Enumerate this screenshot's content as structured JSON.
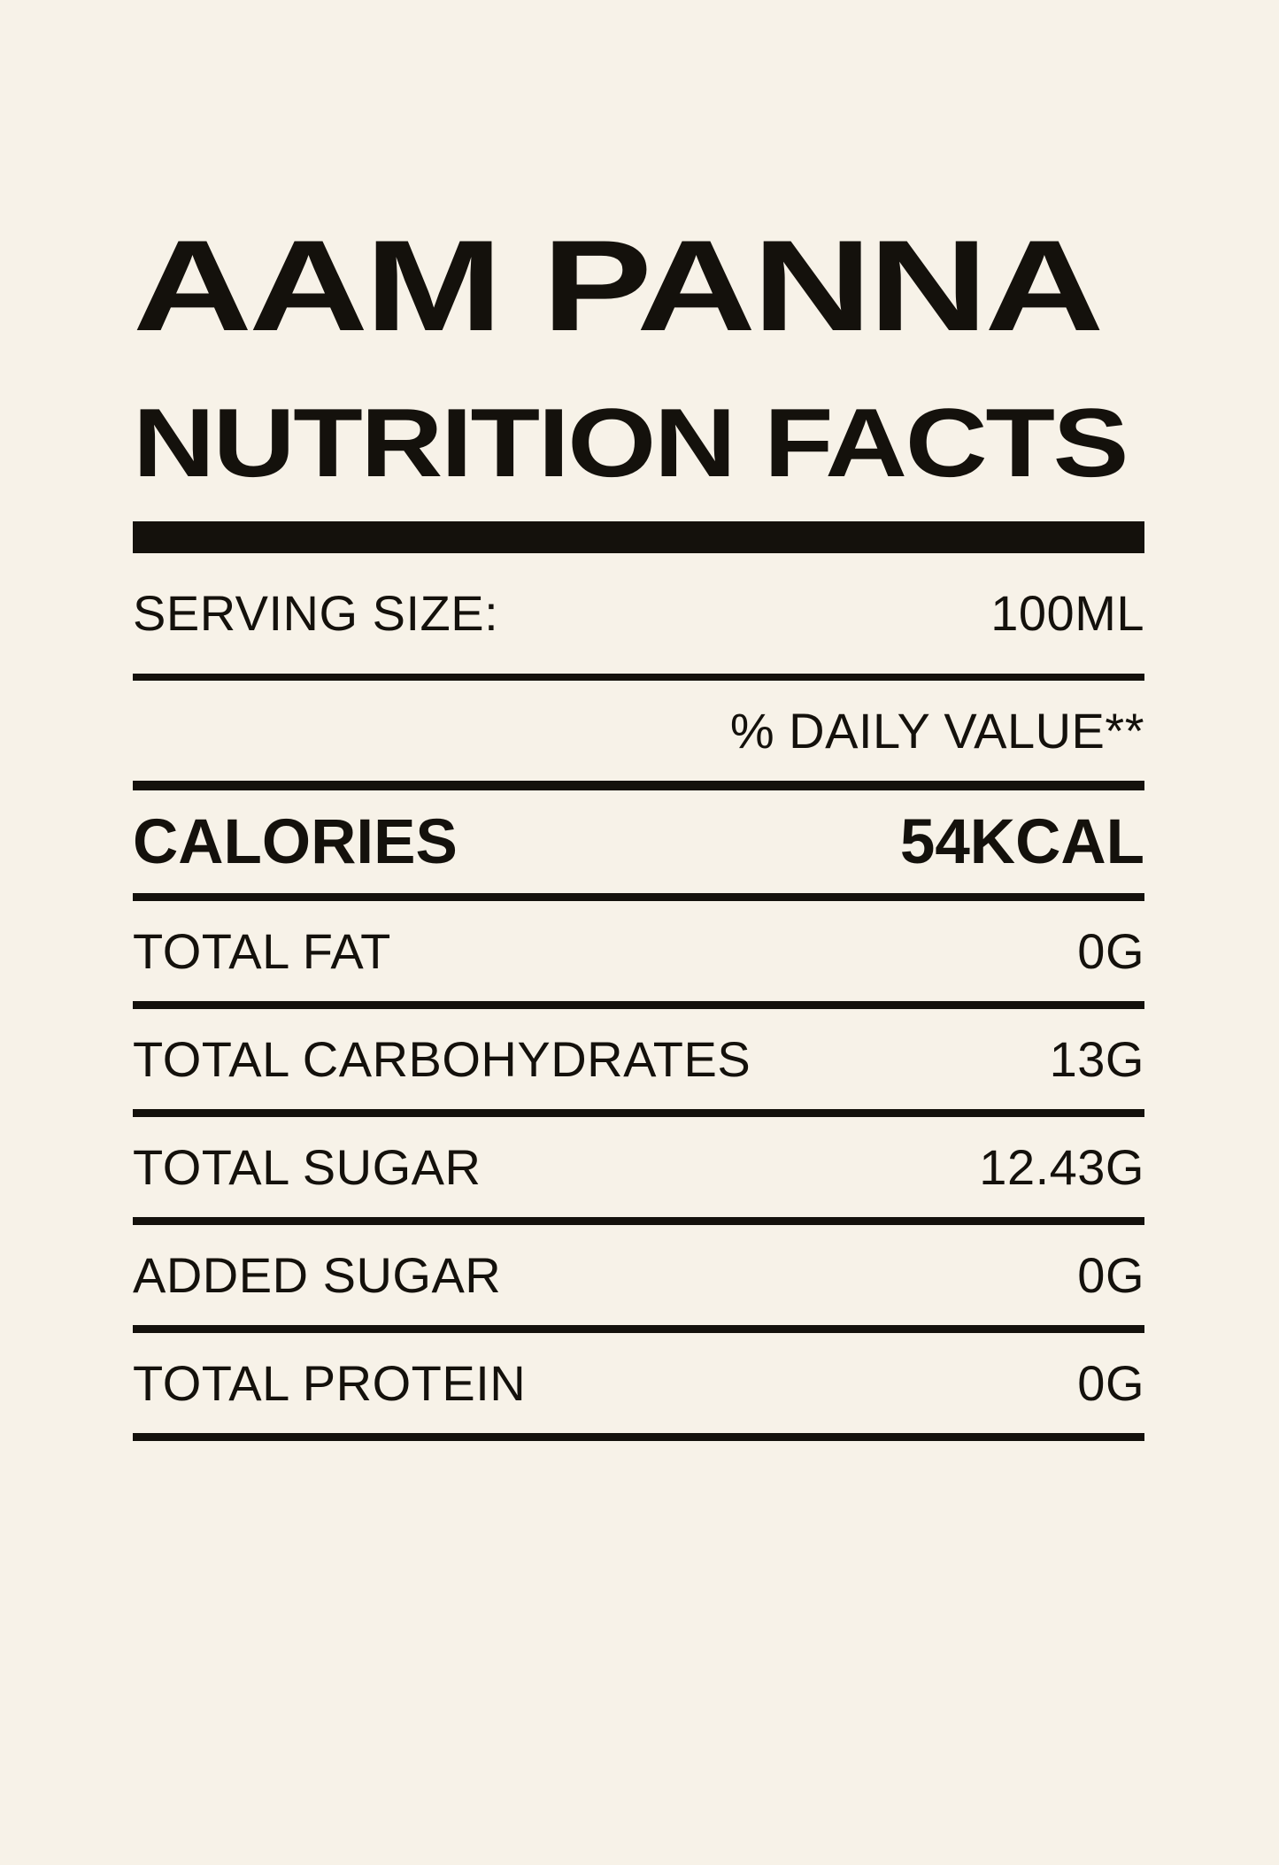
{
  "colors": {
    "background": "#f7f2e8",
    "ink": "#14110c"
  },
  "header": {
    "title": "AAM PANNA",
    "subtitle": "NUTRITION FACTS"
  },
  "serving": {
    "label": "SERVING SIZE:",
    "value": "100ML"
  },
  "daily_value_heading": "% DAILY VALUE**",
  "rows": [
    {
      "label": "CALORIES",
      "value": "54KCAL",
      "emphasis": true
    },
    {
      "label": "TOTAL FAT",
      "value": "0G",
      "emphasis": false
    },
    {
      "label": "TOTAL CARBOHYDRATES",
      "value": "13G",
      "emphasis": false
    },
    {
      "label": "TOTAL SUGAR",
      "value": "12.43G",
      "emphasis": false
    },
    {
      "label": "ADDED SUGAR",
      "value": "0G",
      "emphasis": false
    },
    {
      "label": "TOTAL PROTEIN",
      "value": "0G",
      "emphasis": false
    }
  ]
}
